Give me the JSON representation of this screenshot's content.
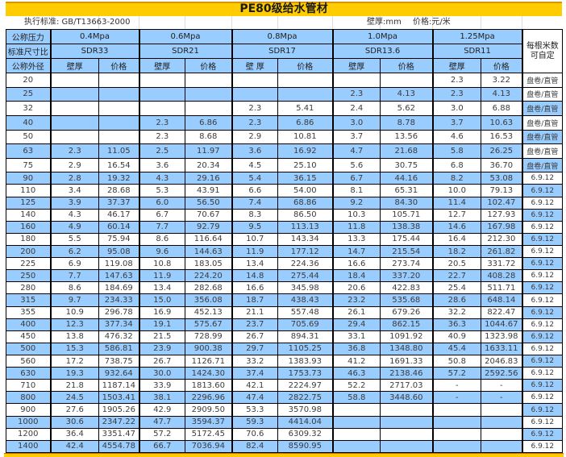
{
  "title": "PE80级给水管材",
  "subheader": {
    "standard_note": "执行标准: GB/T13663-2000",
    "wall_unit": "壁厚:mm",
    "price_unit": "价格:元/米"
  },
  "header": {
    "pressure_label": "公称压力",
    "sdr_label": "标准尺寸比",
    "diameter_label": "公称外径",
    "length_note_line1": "每根米数",
    "length_note_line2": "可自定",
    "groups": [
      {
        "pressure": "0.4Mpa",
        "sdr": "SDR33",
        "wall": "壁厚",
        "price": "价格"
      },
      {
        "pressure": "0.6Mpa",
        "sdr": "SDR21",
        "wall": "壁厚",
        "price": "价格"
      },
      {
        "pressure": "0.8Mpa",
        "sdr": "SDR17",
        "wall": "壁 厚",
        "price": "价格"
      },
      {
        "pressure": "1.0Mpa",
        "sdr": "SDR13.6",
        "wall": "壁厚",
        "price": "价格"
      },
      {
        "pressure": "1.25Mpa",
        "sdr": "SDR11",
        "wall": "壁厚",
        "price": "价格"
      }
    ]
  },
  "colors": {
    "row_highlight": "#99ccff",
    "title_fill": "#ffcc00"
  },
  "rows": [
    {
      "dn": "20",
      "cells": [
        "",
        "",
        "",
        "",
        "",
        "",
        "",
        "",
        "2.3",
        "3.22"
      ],
      "length": "盘卷/直管"
    },
    {
      "dn": "25",
      "cells": [
        "",
        "",
        "",
        "",
        "",
        "",
        "2.3",
        "4.13",
        "2.3",
        "4.13"
      ],
      "length": "盘卷/直管"
    },
    {
      "dn": "32",
      "cells": [
        "",
        "",
        "",
        "",
        "2.3",
        "5.41",
        "2.4",
        "5.62",
        "3.0",
        "6.88"
      ],
      "length": "盘卷/直管"
    },
    {
      "dn": "40",
      "cells": [
        "",
        "",
        "2.3",
        "6.86",
        "2.3",
        "6.86",
        "3.0",
        "8.78",
        "3.7",
        "10.63"
      ],
      "length": "盘卷/直管"
    },
    {
      "dn": "50",
      "cells": [
        "",
        "",
        "2.3",
        "8.68",
        "2.9",
        "10.81",
        "3.7",
        "13.56",
        "4.6",
        "16.53"
      ],
      "length": "盘卷/直管"
    },
    {
      "dn": "63",
      "cells": [
        "2.3",
        "11.05",
        "2.5",
        "11.97",
        "3.6",
        "16.92",
        "4.7",
        "21.68",
        "5.8",
        "26.25"
      ],
      "length": "盘卷/直管"
    },
    {
      "dn": "75",
      "cells": [
        "2.9",
        "16.54",
        "3.6",
        "20.34",
        "4.5",
        "25.10",
        "5.6",
        "30.75",
        "6.8",
        "36.70"
      ],
      "length": "盘卷/直管"
    },
    {
      "dn": "90",
      "cells": [
        "2.8",
        "19.32",
        "4.3",
        "29.16",
        "5.4",
        "36.15",
        "6.7",
        "44.16",
        "8.2",
        "53.08"
      ],
      "length": "6.9.12"
    },
    {
      "dn": "110",
      "cells": [
        "3.4",
        "28.68",
        "5.3",
        "43.91",
        "6.6",
        "54.00",
        "8.1",
        "65.31",
        "10.0",
        "79.13"
      ],
      "length": "6.9.12"
    },
    {
      "dn": "125",
      "cells": [
        "3.9",
        "37.37",
        "6.0",
        "56.50",
        "7.4",
        "68.86",
        "9.2",
        "84.30",
        "11.4",
        "102.47"
      ],
      "length": "6.9.12"
    },
    {
      "dn": "140",
      "cells": [
        "4.3",
        "46.17",
        "6.7",
        "70.67",
        "8.3",
        "86.50",
        "10.3",
        "105.71",
        "12.7",
        "127.93"
      ],
      "length": "6.9.12"
    },
    {
      "dn": "160",
      "cells": [
        "4.9",
        "60.14",
        "7.7",
        "92.79",
        "9.5",
        "113.13",
        "11.8",
        "138.38",
        "14.6",
        "167.98"
      ],
      "length": "6.9.12"
    },
    {
      "dn": "180",
      "cells": [
        "5.5",
        "75.94",
        "8.6",
        "116.64",
        "10.7",
        "143.34",
        "13.3",
        "175.44",
        "16.4",
        "212.30"
      ],
      "length": "6.9.12"
    },
    {
      "dn": "200",
      "cells": [
        "6.2",
        "95.08",
        "9.6",
        "144.63",
        "11.9",
        "177.12",
        "14.7",
        "215.54",
        "18.2",
        "261.82"
      ],
      "length": "6.9.12"
    },
    {
      "dn": "225",
      "cells": [
        "6.9",
        "119.08",
        "10.8",
        "183.05",
        "13.4",
        "224.36",
        "16.6",
        "273.74",
        "20.5",
        "331.72"
      ],
      "length": "6.9.12"
    },
    {
      "dn": "250",
      "cells": [
        "7.7",
        "147.63",
        "11.9",
        "224.20",
        "14.8",
        "275.44",
        "18.4",
        "337.20",
        "22.7",
        "408.28"
      ],
      "length": "6.9.12"
    },
    {
      "dn": "280",
      "cells": [
        "8.6",
        "184.69",
        "13.4",
        "282.68",
        "16.6",
        "345.98",
        "20.6",
        "422.83",
        "25.4",
        "511.71"
      ],
      "length": "6.9.12"
    },
    {
      "dn": "315",
      "cells": [
        "9.7",
        "234.33",
        "15.0",
        "356.08",
        "18.7",
        "438.43",
        "23.2",
        "535.68",
        "28.6",
        "648.14"
      ],
      "length": "6.9.12"
    },
    {
      "dn": "355",
      "cells": [
        "10.9",
        "296.78",
        "16.9",
        "452.13",
        "21.1",
        "557.48",
        "26.1",
        "679.26",
        "32.2",
        "822.47"
      ],
      "length": "6.9.12"
    },
    {
      "dn": "400",
      "cells": [
        "12.3",
        "377.34",
        "19.1",
        "575.67",
        "23.7",
        "705.69",
        "29.4",
        "862.15",
        "36.3",
        "1044.67"
      ],
      "length": "6.9.12"
    },
    {
      "dn": "450",
      "cells": [
        "13.8",
        "476.32",
        "21.5",
        "728.99",
        "26.7",
        "894.31",
        "33.1",
        "1091.92",
        "40.9",
        "1323.98"
      ],
      "length": "6.9.12"
    },
    {
      "dn": "500",
      "cells": [
        "15.3",
        "586.81",
        "23.9",
        "900.38",
        "29.7",
        "1105.25",
        "36.8",
        "1348.80",
        "45.4",
        "1633.11"
      ],
      "length": "6.9.12"
    },
    {
      "dn": "560",
      "cells": [
        "17.2",
        "738.75",
        "26.7",
        "1126.71",
        "33.2",
        "1383.93",
        "41.2",
        "1691.33",
        "50.8",
        "2046.83"
      ],
      "length": "6.9.12"
    },
    {
      "dn": "630",
      "cells": [
        "19.3",
        "932.64",
        "30.0",
        "1424.30",
        "37.4",
        "1753.73",
        "46.3",
        "2138.46",
        "57.2",
        "2592.56"
      ],
      "length": "6.9.12"
    },
    {
      "dn": "710",
      "cells": [
        "21.8",
        "1187.14",
        "33.9",
        "1813.60",
        "42.1",
        "2224.97",
        "52.2",
        "2717.03",
        "-",
        "-"
      ],
      "length": "6.9.12"
    },
    {
      "dn": "800",
      "cells": [
        "24.5",
        "1503.41",
        "38.1",
        "2296.96",
        "47.4",
        "2822.75",
        "58.8",
        "3448.60",
        "-",
        "-"
      ],
      "length": "6.9.12"
    },
    {
      "dn": "900",
      "cells": [
        "27.6",
        "1905.26",
        "42.9",
        "2909.50",
        "53.3",
        "3570.98",
        "",
        "",
        "",
        ""
      ],
      "length": "6.9.12"
    },
    {
      "dn": "1000",
      "cells": [
        "30.6",
        "2347.22",
        "47.7",
        "3594.37",
        "59.3",
        "4414.04",
        "",
        "",
        "",
        ""
      ],
      "length": "6.9.12"
    },
    {
      "dn": "1200",
      "cells": [
        "36.4",
        "3351.47",
        "57.2",
        "5172.45",
        "70.6",
        "6309.32",
        "",
        "",
        "",
        ""
      ],
      "length": "6.9.12"
    },
    {
      "dn": "1400",
      "cells": [
        "42.4",
        "4554.78",
        "66.7",
        "7036.94",
        "82.4",
        "8590.95",
        "",
        "",
        "",
        ""
      ],
      "length": "6.9.12"
    }
  ]
}
